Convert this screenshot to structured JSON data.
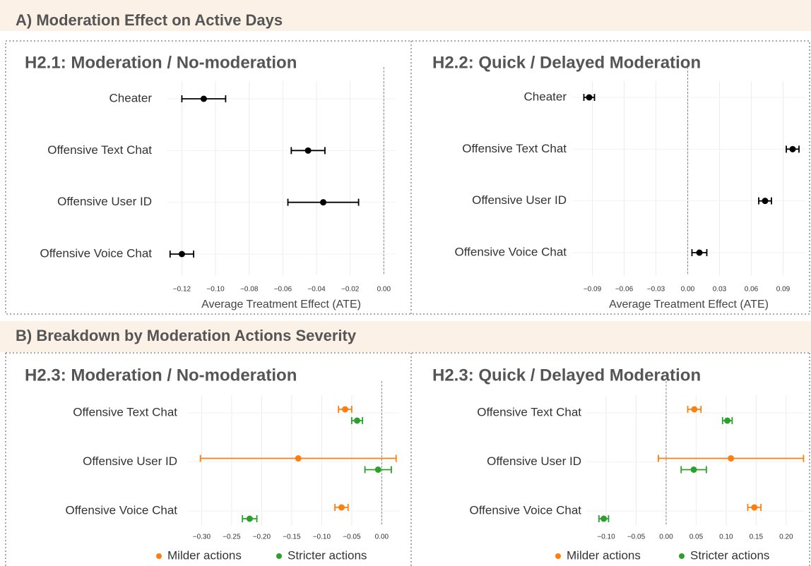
{
  "sections": [
    {
      "title": "A) Moderation Effect on Active Days"
    },
    {
      "title": "B) Breakdown by Moderation Actions Severity"
    }
  ],
  "chart_data": [
    {
      "type": "errorbar",
      "title": "H2.1: Moderation / No-moderation",
      "categories": [
        "Cheater",
        "Offensive Text Chat",
        "Offensive User ID",
        "Offensive Voice Chat"
      ],
      "series": [
        {
          "color": "#000000",
          "values": [
            -0.107,
            -0.045,
            -0.036,
            -0.12
          ],
          "errors": [
            0.013,
            0.01,
            0.021,
            0.007
          ]
        }
      ],
      "xlim": [
        -0.129,
        0.007
      ],
      "xticks": [
        {
          "value": -0.12,
          "label": "−0.12"
        },
        {
          "value": -0.1,
          "label": "−0.10"
        },
        {
          "value": -0.08,
          "label": "−0.08"
        },
        {
          "value": -0.06,
          "label": "−0.06"
        },
        {
          "value": -0.04,
          "label": "−0.04"
        },
        {
          "value": -0.02,
          "label": "−0.02"
        },
        {
          "value": 0,
          "label": "0.00"
        }
      ],
      "xlabel": "Average Treatment Effect (ATE)",
      "grid": true,
      "zero_line": true
    },
    {
      "type": "errorbar",
      "title": "H2.2: Quick / Delayed Moderation",
      "categories": [
        "Cheater",
        "Offensive Text Chat",
        "Offensive User ID",
        "Offensive Voice Chat"
      ],
      "series": [
        {
          "color": "#000000",
          "values": [
            -0.093,
            0.099,
            0.073,
            0.011
          ],
          "errors": [
            0.005,
            0.006,
            0.006,
            0.007
          ]
        }
      ],
      "xlim": [
        -0.109,
        0.111
      ],
      "xticks": [
        {
          "value": -0.09,
          "label": "−0.09"
        },
        {
          "value": -0.06,
          "label": "−0.06"
        },
        {
          "value": -0.03,
          "label": "−0.03"
        },
        {
          "value": 0,
          "label": "0.00"
        },
        {
          "value": 0.03,
          "label": "0.03"
        },
        {
          "value": 0.06,
          "label": "0.06"
        },
        {
          "value": 0.09,
          "label": "0.09"
        }
      ],
      "xlabel": "Average Treatment Effect (ATE)",
      "grid": true,
      "zero_line": true
    },
    {
      "type": "errorbar",
      "title": "H2.3: Moderation / No-moderation",
      "categories": [
        "Offensive Text Chat",
        "Offensive User ID",
        "Offensive Voice Chat"
      ],
      "series": [
        {
          "name": "Milder actions",
          "color": "#ff7f0e",
          "values": [
            -0.061,
            -0.139,
            -0.067
          ],
          "errors": [
            0.011,
            0.163,
            0.011
          ]
        },
        {
          "name": "Stricter actions",
          "color": "#2ca02c",
          "values": [
            -0.041,
            -0.006,
            -0.22
          ],
          "errors": [
            0.009,
            0.022,
            0.012
          ]
        }
      ],
      "xlim": [
        -0.324,
        0.029
      ],
      "xticks": [
        {
          "value": -0.3,
          "label": "−0.30"
        },
        {
          "value": -0.25,
          "label": "−0.25"
        },
        {
          "value": -0.2,
          "label": "−0.20"
        },
        {
          "value": -0.15,
          "label": "−0.15"
        },
        {
          "value": -0.1,
          "label": "−0.10"
        },
        {
          "value": -0.05,
          "label": "−0.05"
        },
        {
          "value": 0,
          "label": "0.00"
        }
      ],
      "grid": true,
      "zero_line": true,
      "legend": "bottom"
    },
    {
      "type": "errorbar",
      "title": "H2.3: Quick / Delayed Moderation",
      "categories": [
        "Offensive Text Chat",
        "Offensive User ID",
        "Offensive Voice Chat"
      ],
      "series": [
        {
          "name": "Milder actions",
          "color": "#ff7f0e",
          "values": [
            0.047,
            0.108,
            0.147
          ],
          "errors": [
            0.011,
            0.121,
            0.011
          ]
        },
        {
          "name": "Stricter actions",
          "color": "#2ca02c",
          "values": [
            0.102,
            0.046,
            -0.104
          ],
          "errors": [
            0.008,
            0.021,
            0.008
          ]
        }
      ],
      "xlim": [
        -0.133,
        0.232
      ],
      "xticks": [
        {
          "value": -0.1,
          "label": "−0.10"
        },
        {
          "value": -0.05,
          "label": "−0.05"
        },
        {
          "value": 0,
          "label": "0.00"
        },
        {
          "value": 0.05,
          "label": "0.05"
        },
        {
          "value": 0.1,
          "label": "0.10"
        },
        {
          "value": 0.15,
          "label": "0.15"
        },
        {
          "value": 0.2,
          "label": "0.20"
        }
      ],
      "grid": true,
      "zero_line": true,
      "legend": "bottom"
    }
  ]
}
